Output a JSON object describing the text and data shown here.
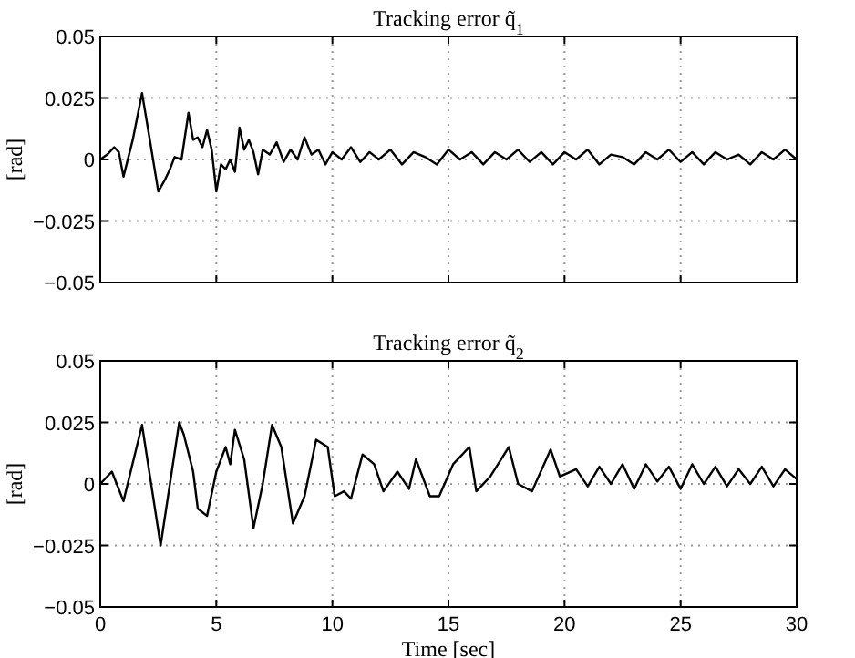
{
  "chart_data": [
    {
      "type": "line",
      "title": "Tracking error q̃$_{1}$",
      "ylabel": "[rad]",
      "tick_labels": "y",
      "grid": true,
      "xlim": [
        0,
        30
      ],
      "xticks": [
        0,
        5,
        10,
        15,
        20,
        25,
        30
      ],
      "ylim": [
        -0.05,
        0.05
      ],
      "yticks": [
        -0.05,
        -0.025,
        0,
        0.025,
        0.05
      ],
      "x": [
        0,
        0.3,
        0.6,
        0.8,
        1.0,
        1.4,
        1.8,
        2.1,
        2.5,
        2.8,
        3.0,
        3.2,
        3.5,
        3.8,
        4.0,
        4.2,
        4.4,
        4.6,
        4.8,
        5.0,
        5.2,
        5.4,
        5.6,
        5.8,
        6.0,
        6.2,
        6.4,
        6.6,
        6.8,
        7.0,
        7.3,
        7.6,
        7.9,
        8.2,
        8.5,
        8.8,
        9.1,
        9.4,
        9.7,
        10.0,
        10.4,
        10.8,
        11.2,
        11.6,
        12.0,
        12.5,
        13.0,
        13.5,
        14.0,
        14.5,
        15.0,
        15.5,
        16.0,
        16.5,
        17.0,
        17.5,
        18.0,
        18.5,
        19.0,
        19.5,
        20.0,
        20.5,
        21.0,
        21.5,
        22.0,
        22.5,
        23.0,
        23.5,
        24.0,
        24.5,
        25.0,
        25.5,
        26.0,
        26.5,
        27.0,
        27.5,
        28.0,
        28.5,
        29.0,
        29.5,
        30.0
      ],
      "series": [
        {
          "color": "#000000",
          "values": [
            0,
            0.002,
            0.005,
            0.003,
            -0.007,
            0.008,
            0.027,
            0.01,
            -0.013,
            -0.008,
            -0.004,
            0.001,
            0.0,
            0.019,
            0.008,
            0.009,
            0.005,
            0.012,
            0.004,
            -0.013,
            -0.002,
            -0.004,
            0.0,
            -0.005,
            0.013,
            0.004,
            0.008,
            0.003,
            -0.006,
            0.004,
            0.002,
            0.007,
            -0.001,
            0.004,
            0.0,
            0.009,
            0.002,
            0.004,
            -0.002,
            0.003,
            0.0,
            0.005,
            -0.001,
            0.003,
            0.0,
            0.004,
            -0.002,
            0.003,
            0.001,
            -0.002,
            0.004,
            0.0,
            0.003,
            -0.002,
            0.003,
            0.0,
            0.004,
            -0.001,
            0.003,
            -0.002,
            0.003,
            0.0,
            0.004,
            -0.002,
            0.002,
            0.001,
            -0.002,
            0.003,
            0.0,
            0.004,
            -0.001,
            0.003,
            -0.002,
            0.003,
            0.0,
            0.002,
            -0.002,
            0.003,
            0.0,
            0.004,
            0.0
          ]
        }
      ]
    },
    {
      "type": "line",
      "title": "Tracking error q̃$_{2}$",
      "ylabel": "[rad]",
      "xlabel": "Time [sec]",
      "grid": true,
      "xlim": [
        0,
        30
      ],
      "xticks": [
        0,
        5,
        10,
        15,
        20,
        25,
        30
      ],
      "ylim": [
        -0.05,
        0.05
      ],
      "yticks": [
        -0.05,
        -0.025,
        0,
        0.025,
        0.05
      ],
      "x": [
        0,
        0.5,
        1.0,
        1.8,
        2.6,
        3.4,
        3.6,
        4.0,
        4.2,
        4.6,
        5.0,
        5.4,
        5.6,
        5.8,
        6.2,
        6.6,
        7.0,
        7.4,
        7.8,
        8.3,
        8.8,
        9.3,
        9.8,
        10.1,
        10.5,
        10.8,
        11.3,
        11.8,
        12.2,
        12.8,
        13.3,
        13.6,
        14.2,
        14.6,
        15.2,
        15.9,
        16.2,
        16.8,
        17.6,
        18.0,
        18.6,
        19.4,
        19.8,
        20.5,
        21.0,
        21.5,
        22.0,
        22.5,
        23.0,
        23.5,
        24.0,
        24.5,
        25.0,
        25.5,
        26.0,
        26.5,
        27.0,
        27.5,
        28.0,
        28.5,
        29.0,
        29.5,
        30.0
      ],
      "series": [
        {
          "color": "#000000",
          "values": [
            0,
            0.005,
            -0.007,
            0.024,
            -0.025,
            0.025,
            0.02,
            0.005,
            -0.01,
            -0.013,
            0.005,
            0.015,
            0.008,
            0.022,
            0.01,
            -0.018,
            0.0,
            0.024,
            0.015,
            -0.016,
            -0.005,
            0.018,
            0.015,
            -0.005,
            -0.003,
            -0.006,
            0.012,
            0.008,
            -0.003,
            0.005,
            -0.002,
            0.01,
            -0.005,
            -0.005,
            0.008,
            0.015,
            -0.003,
            0.003,
            0.015,
            0.0,
            -0.003,
            0.014,
            0.003,
            0.006,
            -0.001,
            0.007,
            0.0,
            0.008,
            -0.002,
            0.008,
            0.001,
            0.007,
            -0.002,
            0.008,
            0.0,
            0.007,
            -0.001,
            0.006,
            0.0,
            0.007,
            -0.001,
            0.006,
            0.002
          ]
        }
      ]
    }
  ]
}
